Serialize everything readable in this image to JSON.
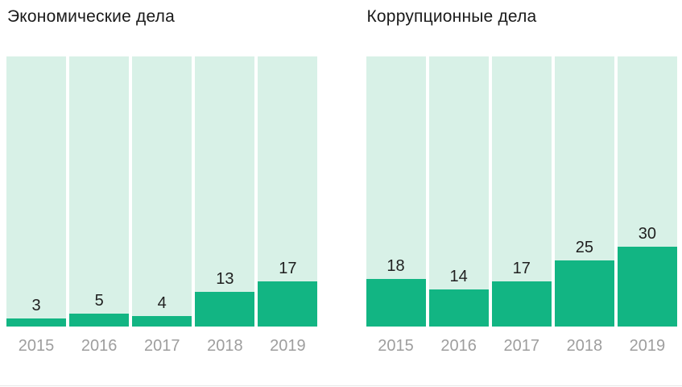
{
  "colors": {
    "bar_fill": "#12b583",
    "bar_track": "#d8f1e7",
    "value_label": "#1f1f1f",
    "year_label": "#9e9e9e",
    "divider": "#e7e7e7"
  },
  "chart_data": [
    {
      "type": "bar",
      "title": "Экономические дела",
      "categories": [
        "2015",
        "2016",
        "2017",
        "2018",
        "2019"
      ],
      "values": [
        3,
        5,
        4,
        13,
        17
      ],
      "xlabel": "",
      "ylabel": "",
      "ylim": [
        0,
        102
      ],
      "grid": false,
      "legend": "none",
      "value_labels": true
    },
    {
      "type": "bar",
      "title": "Коррупционные дела",
      "categories": [
        "2015",
        "2016",
        "2017",
        "2018",
        "2019"
      ],
      "values": [
        18,
        14,
        17,
        25,
        30
      ],
      "xlabel": "",
      "ylabel": "",
      "ylim": [
        0,
        102
      ],
      "grid": false,
      "legend": "none",
      "value_labels": true
    }
  ]
}
